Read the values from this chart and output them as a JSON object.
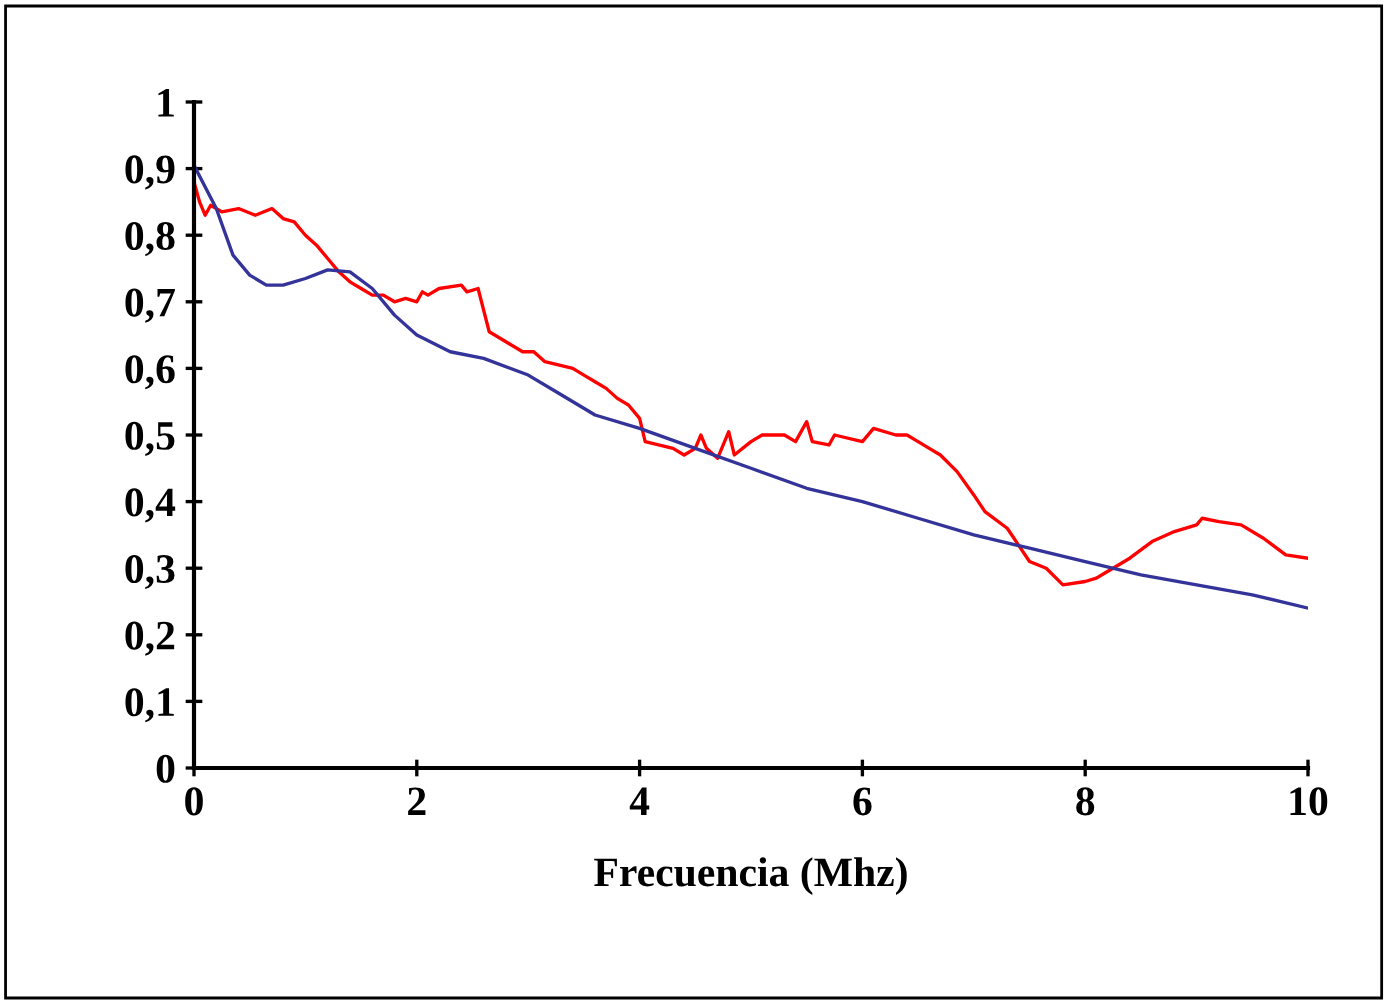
{
  "chart_data": {
    "type": "line",
    "xlabel": "Frecuencia (Mhz)",
    "xlim": [
      0,
      10
    ],
    "xticks": [
      0,
      2,
      4,
      6,
      8,
      10
    ],
    "ylim": [
      0,
      1
    ],
    "yticks": [
      0,
      {
        "value": 0.1,
        "label": "0,1"
      },
      {
        "value": 0.2,
        "label": "0,2"
      },
      {
        "value": 0.3,
        "label": "0,3"
      },
      {
        "value": 0.4,
        "label": "0,4"
      },
      {
        "value": 0.5,
        "label": "0,5"
      },
      {
        "value": 0.6,
        "label": "0,6"
      },
      {
        "value": 0.7,
        "label": "0,7"
      },
      {
        "value": 0.8,
        "label": "0,8"
      },
      {
        "value": 0.9,
        "label": "0,9"
      },
      1
    ],
    "grid": false,
    "legend": false,
    "marker": "none",
    "line_style": "solid",
    "series": [
      {
        "color": "#ff0000",
        "x": [
          0,
          0.05,
          0.1,
          0.15,
          0.25,
          0.4,
          0.55,
          0.7,
          0.8,
          0.9,
          1.0,
          1.1,
          1.2,
          1.3,
          1.4,
          1.5,
          1.6,
          1.7,
          1.8,
          1.9,
          2.0,
          2.05,
          2.1,
          2.2,
          2.4,
          2.45,
          2.55,
          2.65,
          2.8,
          2.95,
          3.05,
          3.15,
          3.4,
          3.5,
          3.6,
          3.7,
          3.8,
          3.9,
          4.0,
          4.05,
          4.3,
          4.4,
          4.5,
          4.55,
          4.6,
          4.7,
          4.8,
          4.85,
          5.0,
          5.1,
          5.3,
          5.4,
          5.5,
          5.55,
          5.7,
          5.75,
          6.0,
          6.1,
          6.3,
          6.4,
          6.5,
          6.6,
          6.7,
          6.85,
          7.0,
          7.1,
          7.3,
          7.4,
          7.5,
          7.65,
          7.8,
          8.0,
          8.1,
          8.2,
          8.4,
          8.6,
          8.8,
          9.0,
          9.05,
          9.2,
          9.4,
          9.6,
          9.8,
          10
        ],
        "values": [
          0.88,
          0.85,
          0.83,
          0.845,
          0.835,
          0.84,
          0.83,
          0.84,
          0.825,
          0.82,
          0.8,
          0.785,
          0.765,
          0.745,
          0.73,
          0.72,
          0.71,
          0.71,
          0.7,
          0.705,
          0.7,
          0.715,
          0.71,
          0.72,
          0.725,
          0.715,
          0.72,
          0.655,
          0.64,
          0.625,
          0.625,
          0.61,
          0.6,
          0.59,
          0.58,
          0.57,
          0.555,
          0.545,
          0.525,
          0.49,
          0.48,
          0.47,
          0.48,
          0.5,
          0.48,
          0.465,
          0.505,
          0.47,
          0.49,
          0.5,
          0.5,
          0.49,
          0.52,
          0.49,
          0.485,
          0.5,
          0.49,
          0.51,
          0.5,
          0.5,
          0.49,
          0.48,
          0.47,
          0.445,
          0.41,
          0.385,
          0.36,
          0.335,
          0.31,
          0.3,
          0.275,
          0.28,
          0.285,
          0.295,
          0.315,
          0.34,
          0.355,
          0.365,
          0.375,
          0.37,
          0.365,
          0.345,
          0.32,
          0.315
        ]
      },
      {
        "color": "#333399",
        "x": [
          0,
          0.2,
          0.35,
          0.5,
          0.65,
          0.8,
          1.0,
          1.2,
          1.4,
          1.6,
          1.8,
          2.0,
          2.3,
          2.6,
          3.0,
          3.3,
          3.6,
          4.0,
          4.5,
          5.0,
          5.5,
          6.0,
          6.5,
          7.0,
          7.5,
          8.0,
          8.5,
          9.0,
          9.5,
          10
        ],
        "values": [
          0.905,
          0.84,
          0.77,
          0.74,
          0.725,
          0.725,
          0.735,
          0.748,
          0.745,
          0.72,
          0.68,
          0.65,
          0.625,
          0.615,
          0.59,
          0.56,
          0.53,
          0.51,
          0.48,
          0.45,
          0.42,
          0.4,
          0.375,
          0.35,
          0.33,
          0.31,
          0.29,
          0.275,
          0.26,
          0.24
        ]
      }
    ]
  }
}
